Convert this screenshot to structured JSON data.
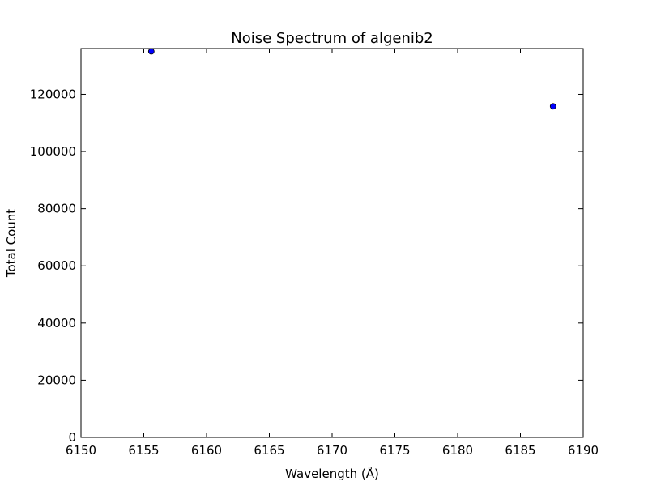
{
  "chart_data": {
    "type": "scatter",
    "title": "Noise Spectrum of algenib2",
    "xlabel": "Wavelength (Å)",
    "ylabel": "Total Count",
    "xlim": [
      6150,
      6190
    ],
    "ylim": [
      0,
      136000
    ],
    "xticks": [
      6150,
      6155,
      6160,
      6165,
      6170,
      6175,
      6180,
      6185,
      6190
    ],
    "yticks": [
      0,
      20000,
      40000,
      60000,
      80000,
      100000,
      120000
    ],
    "grid": false,
    "series": [
      {
        "points": [
          {
            "x": 6155.6,
            "y": 135000
          },
          {
            "x": 6187.6,
            "y": 115800
          }
        ],
        "color": "#0000ff"
      }
    ]
  }
}
